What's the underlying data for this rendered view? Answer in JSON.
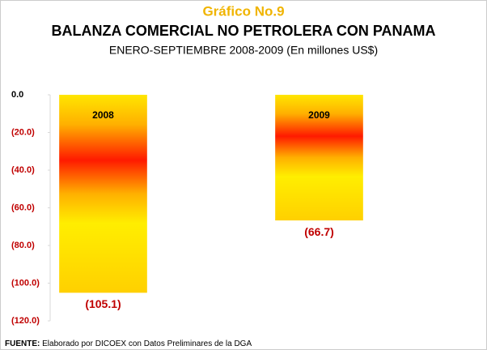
{
  "chart_data": {
    "type": "bar",
    "title": "Gráfico No.9",
    "subtitle": "BALANZA COMERCIAL NO PETROLERA CON PANAMA",
    "subtitle2": "ENERO-SEPTIEMBRE 2008-2009 (En millones US$)",
    "categories": [
      "2008",
      "2009"
    ],
    "values": [
      -105.1,
      -66.7
    ],
    "value_labels": [
      "(105.1)",
      "(66.7)"
    ],
    "ylim": [
      0,
      -120
    ],
    "yticks": [
      {
        "value": 0,
        "label": "0.0"
      },
      {
        "value": -20,
        "label": "(20.0)"
      },
      {
        "value": -40,
        "label": "(40.0)"
      },
      {
        "value": -60,
        "label": "(60.0)"
      },
      {
        "value": -80,
        "label": "(80.0)"
      },
      {
        "value": -100,
        "label": "(100.0)"
      },
      {
        "value": -120,
        "label": "(120.0)"
      }
    ],
    "grid": false,
    "source_label": "FUENTE:",
    "source_text": "Elaborado por DICOEX con Datos Preliminares de la DGA"
  }
}
